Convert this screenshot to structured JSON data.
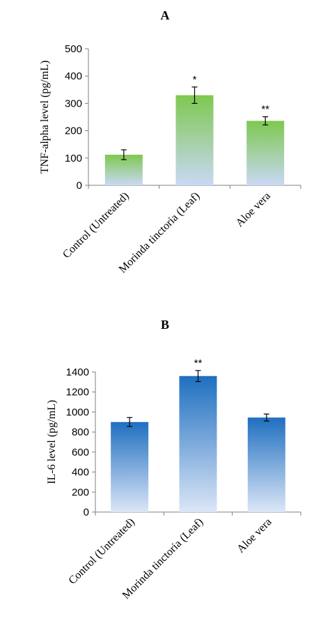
{
  "chart_data": [
    {
      "id": "A",
      "type": "bar",
      "title": "A",
      "ylabel": "TNF-alpha level (pg/mL)",
      "categories": [
        "Control (Untreated)",
        "Morinda tinctoria (Leaf)",
        "Aloe vera"
      ],
      "values": [
        112,
        330,
        236
      ],
      "errors": [
        18,
        30,
        15
      ],
      "significance": [
        "",
        "*",
        "**"
      ],
      "ylim": [
        0,
        500
      ],
      "yticks": [
        0,
        100,
        200,
        300,
        400,
        500
      ],
      "bar_color_top": "#7ec850",
      "bar_color_bottom": "#c9d8f5"
    },
    {
      "id": "B",
      "type": "bar",
      "title": "B",
      "ylabel": "IL-6 level (pg/mL)",
      "categories": [
        "Control (Untreated)",
        "Morinda tinctoria (Leaf)",
        "Aloe vera"
      ],
      "values": [
        900,
        1360,
        945
      ],
      "errors": [
        45,
        55,
        35
      ],
      "significance": [
        "",
        "**",
        ""
      ],
      "ylim": [
        0,
        1400
      ],
      "yticks": [
        0,
        200,
        400,
        600,
        800,
        1000,
        1200,
        1400
      ],
      "bar_color_top": "#1f6fc0",
      "bar_color_bottom": "#dce6f7"
    }
  ]
}
